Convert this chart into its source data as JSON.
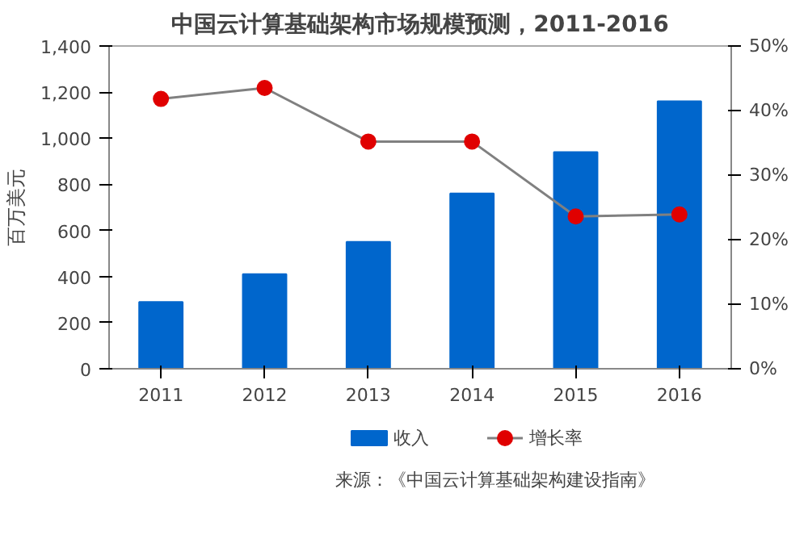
{
  "chart_data": {
    "type": "bar",
    "title": "中国云计算基础架构市场规模预测，2011-2016",
    "ylabel": "百万美元",
    "categories": [
      "2011",
      "2012",
      "2013",
      "2014",
      "2015",
      "2016"
    ],
    "series": [
      {
        "name": "收入",
        "color": "#0066cc",
        "values": [
          290,
          410,
          550,
          760,
          940,
          1160
        ]
      },
      {
        "name": "增长率",
        "type": "line",
        "axis": "y2",
        "color": "#e00000",
        "marker": "circle",
        "values": [
          41.8,
          43.5,
          35.2,
          35.2,
          23.6,
          23.9
        ]
      }
    ],
    "ylim": [
      0,
      1400
    ],
    "yticks": [
      0,
      200,
      400,
      600,
      800,
      {
        "value": 1000,
        "label": "1,000"
      },
      {
        "value": 1200,
        "label": "1,200"
      },
      {
        "value": 1400,
        "label": "1,400"
      }
    ],
    "y2lim": [
      0,
      50
    ],
    "y2ticks": [
      {
        "value": 0,
        "label": "0%"
      },
      {
        "value": 10,
        "label": "10%"
      },
      {
        "value": 20,
        "label": "20%"
      },
      {
        "value": 30,
        "label": "30%"
      },
      {
        "value": 40,
        "label": "40%"
      },
      {
        "value": 50,
        "label": "50%"
      }
    ],
    "grid": false,
    "legend": "bottom",
    "annotations": [
      "来源：《中国云计算基础架构建设指南》"
    ]
  }
}
